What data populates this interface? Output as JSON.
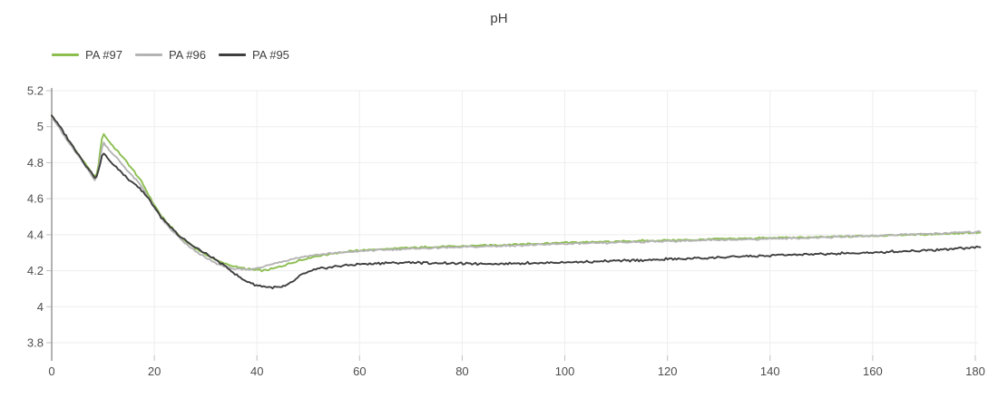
{
  "header": {
    "title": "pH"
  },
  "colors": {
    "background": "#ffffff",
    "axis": "#999999",
    "grid": "#eeeeee",
    "tick": "#c2c2c2",
    "tick_label": "#4d4d4d",
    "title_text": "#3d3d3d",
    "series_green": "#8cbe50",
    "series_gray": "#b4b4b4",
    "series_dark": "#3f3f3f"
  },
  "legend": {
    "items": [
      {
        "label": "PA #97",
        "color": "#8cbe50"
      },
      {
        "label": "PA #96",
        "color": "#b4b4b4"
      },
      {
        "label": "PA #95",
        "color": "#3f3f3f"
      }
    ]
  },
  "chart_data": {
    "type": "line",
    "title": "pH",
    "xlabel": "",
    "ylabel": "",
    "xlim": [
      0,
      180
    ],
    "ylim": [
      3.8,
      5.2
    ],
    "grid": true,
    "legend_position": "top-left",
    "x_ticks": [
      {
        "v": 0,
        "label": "0"
      },
      {
        "v": 20,
        "label": "20"
      },
      {
        "v": 40,
        "label": "40"
      },
      {
        "v": 60,
        "label": "60"
      },
      {
        "v": 80,
        "label": "80"
      },
      {
        "v": 100,
        "label": "100"
      },
      {
        "v": 120,
        "label": "120"
      },
      {
        "v": 140,
        "label": "140"
      },
      {
        "v": 160,
        "label": "160"
      },
      {
        "v": 180,
        "label": "180"
      }
    ],
    "y_ticks": [
      {
        "v": 5.2,
        "label": "5.2"
      },
      {
        "v": 5.0,
        "label": "5"
      },
      {
        "v": 4.8,
        "label": "4.8"
      },
      {
        "v": 4.6,
        "label": "4.6"
      },
      {
        "v": 4.4,
        "label": "4.4"
      },
      {
        "v": 4.2,
        "label": "4.2"
      },
      {
        "v": 4.0,
        "label": "4"
      },
      {
        "v": 3.8,
        "label": "3.8"
      }
    ],
    "series": [
      {
        "name": "PA #97",
        "color": "#8cbe50",
        "noise": 0.006,
        "points": [
          [
            0,
            5.06
          ],
          [
            1,
            5.02
          ],
          [
            2,
            4.975
          ],
          [
            3,
            4.935
          ],
          [
            4,
            4.895
          ],
          [
            5,
            4.855
          ],
          [
            6,
            4.815
          ],
          [
            7,
            4.775
          ],
          [
            8,
            4.735
          ],
          [
            8.5,
            4.72
          ],
          [
            9,
            4.76
          ],
          [
            9.5,
            4.88
          ],
          [
            10,
            4.965
          ],
          [
            11,
            4.925
          ],
          [
            12,
            4.89
          ],
          [
            13,
            4.86
          ],
          [
            14,
            4.825
          ],
          [
            15,
            4.79
          ],
          [
            16,
            4.755
          ],
          [
            17,
            4.715
          ],
          [
            18,
            4.67
          ],
          [
            19,
            4.615
          ],
          [
            20,
            4.565
          ],
          [
            21,
            4.52
          ],
          [
            22,
            4.48
          ],
          [
            23,
            4.45
          ],
          [
            24,
            4.42
          ],
          [
            25,
            4.39
          ],
          [
            26,
            4.365
          ],
          [
            27,
            4.345
          ],
          [
            28,
            4.325
          ],
          [
            29,
            4.305
          ],
          [
            30,
            4.29
          ],
          [
            31,
            4.275
          ],
          [
            32,
            4.26
          ],
          [
            33,
            4.248
          ],
          [
            34,
            4.238
          ],
          [
            35,
            4.228
          ],
          [
            36,
            4.222
          ],
          [
            37,
            4.215
          ],
          [
            38,
            4.21
          ],
          [
            39,
            4.206
          ],
          [
            40,
            4.204
          ],
          [
            41,
            4.202
          ],
          [
            42,
            4.204
          ],
          [
            43,
            4.21
          ],
          [
            44,
            4.218
          ],
          [
            45,
            4.227
          ],
          [
            46,
            4.237
          ],
          [
            47,
            4.247
          ],
          [
            48,
            4.256
          ],
          [
            50,
            4.27
          ],
          [
            52,
            4.282
          ],
          [
            54,
            4.292
          ],
          [
            56,
            4.3
          ],
          [
            58,
            4.307
          ],
          [
            60,
            4.313
          ],
          [
            63,
            4.318
          ],
          [
            66,
            4.322
          ],
          [
            70,
            4.327
          ],
          [
            75,
            4.332
          ],
          [
            80,
            4.337
          ],
          [
            85,
            4.341
          ],
          [
            90,
            4.346
          ],
          [
            95,
            4.351
          ],
          [
            100,
            4.356
          ],
          [
            105,
            4.359
          ],
          [
            110,
            4.362
          ],
          [
            115,
            4.366
          ],
          [
            120,
            4.369
          ],
          [
            125,
            4.372
          ],
          [
            130,
            4.376
          ],
          [
            135,
            4.379
          ],
          [
            140,
            4.382
          ],
          [
            145,
            4.384
          ],
          [
            150,
            4.387
          ],
          [
            155,
            4.39
          ],
          [
            160,
            4.394
          ],
          [
            165,
            4.398
          ],
          [
            170,
            4.401
          ],
          [
            175,
            4.405
          ],
          [
            180,
            4.41
          ]
        ]
      },
      {
        "name": "PA #96",
        "color": "#b4b4b4",
        "noise": 0.006,
        "points": [
          [
            0,
            5.055
          ],
          [
            1,
            5.015
          ],
          [
            2,
            4.968
          ],
          [
            3,
            4.925
          ],
          [
            4,
            4.885
          ],
          [
            5,
            4.845
          ],
          [
            6,
            4.805
          ],
          [
            7,
            4.762
          ],
          [
            8,
            4.722
          ],
          [
            8.5,
            4.7
          ],
          [
            9,
            4.74
          ],
          [
            9.5,
            4.83
          ],
          [
            10,
            4.915
          ],
          [
            11,
            4.878
          ],
          [
            12,
            4.845
          ],
          [
            13,
            4.815
          ],
          [
            14,
            4.783
          ],
          [
            15,
            4.75
          ],
          [
            16,
            4.718
          ],
          [
            17,
            4.685
          ],
          [
            18,
            4.645
          ],
          [
            19,
            4.6
          ],
          [
            20,
            4.553
          ],
          [
            21,
            4.508
          ],
          [
            22,
            4.468
          ],
          [
            23,
            4.437
          ],
          [
            24,
            4.407
          ],
          [
            25,
            4.378
          ],
          [
            26,
            4.352
          ],
          [
            27,
            4.33
          ],
          [
            28,
            4.31
          ],
          [
            29,
            4.29
          ],
          [
            30,
            4.272
          ],
          [
            31,
            4.256
          ],
          [
            32,
            4.242
          ],
          [
            33,
            4.23
          ],
          [
            34,
            4.221
          ],
          [
            35,
            4.214
          ],
          [
            36,
            4.209
          ],
          [
            37,
            4.206
          ],
          [
            38,
            4.206
          ],
          [
            39,
            4.209
          ],
          [
            40,
            4.214
          ],
          [
            41,
            4.221
          ],
          [
            42,
            4.228
          ],
          [
            43,
            4.236
          ],
          [
            44,
            4.244
          ],
          [
            45,
            4.252
          ],
          [
            46,
            4.259
          ],
          [
            47,
            4.266
          ],
          [
            48,
            4.272
          ],
          [
            50,
            4.281
          ],
          [
            52,
            4.289
          ],
          [
            54,
            4.295
          ],
          [
            56,
            4.3
          ],
          [
            58,
            4.305
          ],
          [
            60,
            4.309
          ],
          [
            63,
            4.314
          ],
          [
            66,
            4.318
          ],
          [
            70,
            4.322
          ],
          [
            75,
            4.327
          ],
          [
            80,
            4.331
          ],
          [
            85,
            4.335
          ],
          [
            90,
            4.34
          ],
          [
            95,
            4.344
          ],
          [
            100,
            4.349
          ],
          [
            105,
            4.352
          ],
          [
            110,
            4.356
          ],
          [
            115,
            4.36
          ],
          [
            120,
            4.364
          ],
          [
            125,
            4.367
          ],
          [
            130,
            4.371
          ],
          [
            135,
            4.374
          ],
          [
            140,
            4.377
          ],
          [
            145,
            4.381
          ],
          [
            150,
            4.385
          ],
          [
            155,
            4.389
          ],
          [
            160,
            4.394
          ],
          [
            165,
            4.399
          ],
          [
            170,
            4.404
          ],
          [
            175,
            4.41
          ],
          [
            180,
            4.415
          ]
        ]
      },
      {
        "name": "PA #95",
        "color": "#3f3f3f",
        "noise": 0.008,
        "points": [
          [
            0,
            5.062
          ],
          [
            1,
            5.025
          ],
          [
            2,
            4.982
          ],
          [
            3,
            4.94
          ],
          [
            4,
            4.898
          ],
          [
            5,
            4.856
          ],
          [
            6,
            4.814
          ],
          [
            7,
            4.772
          ],
          [
            8,
            4.732
          ],
          [
            8.5,
            4.712
          ],
          [
            9,
            4.74
          ],
          [
            9.5,
            4.8
          ],
          [
            10,
            4.856
          ],
          [
            11,
            4.82
          ],
          [
            12,
            4.79
          ],
          [
            13,
            4.762
          ],
          [
            14,
            4.735
          ],
          [
            15,
            4.71
          ],
          [
            16,
            4.687
          ],
          [
            17,
            4.662
          ],
          [
            18,
            4.63
          ],
          [
            19,
            4.592
          ],
          [
            20,
            4.55
          ],
          [
            21,
            4.51
          ],
          [
            22,
            4.474
          ],
          [
            23,
            4.444
          ],
          [
            24,
            4.416
          ],
          [
            25,
            4.39
          ],
          [
            26,
            4.368
          ],
          [
            27,
            4.348
          ],
          [
            28,
            4.33
          ],
          [
            29,
            4.312
          ],
          [
            30,
            4.295
          ],
          [
            31,
            4.277
          ],
          [
            32,
            4.258
          ],
          [
            33,
            4.24
          ],
          [
            34,
            4.22
          ],
          [
            35,
            4.198
          ],
          [
            36,
            4.178
          ],
          [
            37,
            4.158
          ],
          [
            38,
            4.14
          ],
          [
            39,
            4.128
          ],
          [
            40,
            4.118
          ],
          [
            41,
            4.112
          ],
          [
            42,
            4.108
          ],
          [
            43,
            4.106
          ],
          [
            44,
            4.106
          ],
          [
            45,
            4.11
          ],
          [
            46,
            4.122
          ],
          [
            47,
            4.142
          ],
          [
            48,
            4.163
          ],
          [
            49,
            4.18
          ],
          [
            50,
            4.193
          ],
          [
            51,
            4.202
          ],
          [
            52,
            4.209
          ],
          [
            53,
            4.214
          ],
          [
            54,
            4.219
          ],
          [
            56,
            4.226
          ],
          [
            58,
            4.231
          ],
          [
            60,
            4.236
          ],
          [
            63,
            4.24
          ],
          [
            66,
            4.243
          ],
          [
            70,
            4.245
          ],
          [
            75,
            4.243
          ],
          [
            80,
            4.24
          ],
          [
            85,
            4.239
          ],
          [
            90,
            4.241
          ],
          [
            95,
            4.243
          ],
          [
            100,
            4.246
          ],
          [
            105,
            4.25
          ],
          [
            110,
            4.254
          ],
          [
            115,
            4.259
          ],
          [
            120,
            4.264
          ],
          [
            125,
            4.269
          ],
          [
            130,
            4.274
          ],
          [
            135,
            4.279
          ],
          [
            140,
            4.284
          ],
          [
            145,
            4.288
          ],
          [
            150,
            4.292
          ],
          [
            155,
            4.296
          ],
          [
            160,
            4.301
          ],
          [
            165,
            4.307
          ],
          [
            170,
            4.313
          ],
          [
            175,
            4.321
          ],
          [
            180,
            4.33
          ]
        ]
      }
    ]
  }
}
